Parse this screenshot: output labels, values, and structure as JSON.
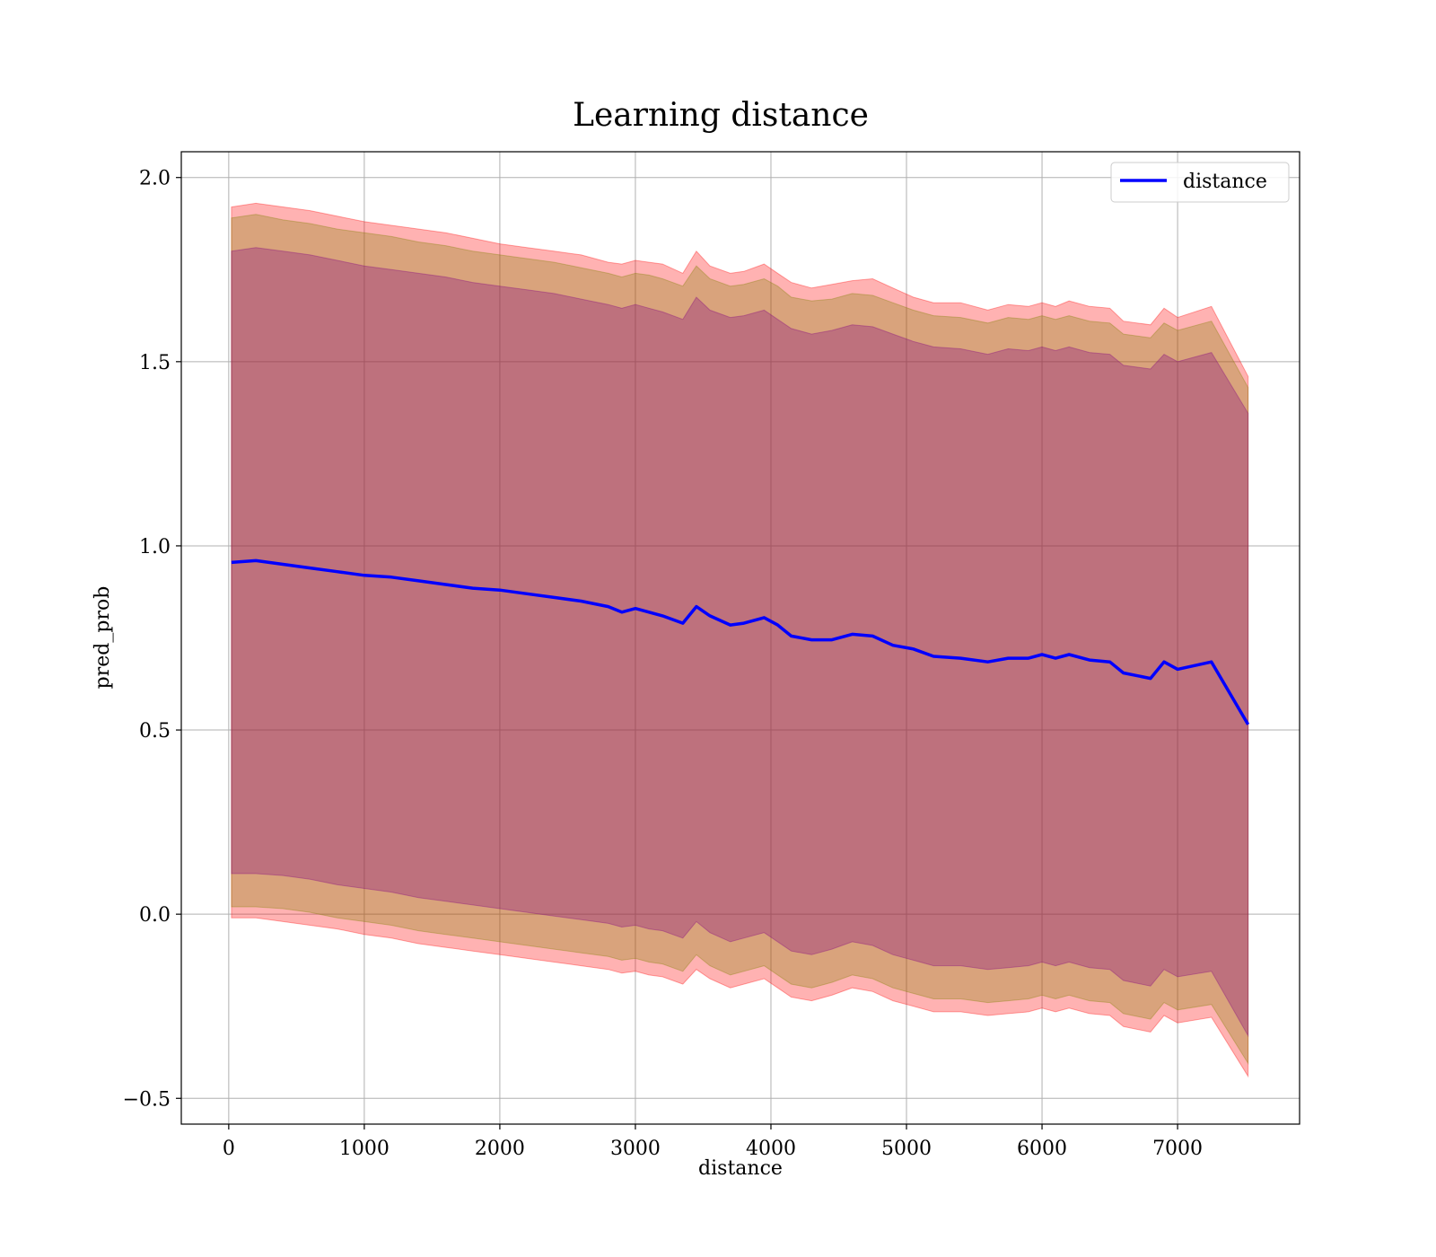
{
  "chart_data": {
    "type": "area",
    "title": "Learning distance",
    "xlabel": "distance",
    "ylabel": "pred_prob",
    "xlim": [
      -350,
      7900
    ],
    "ylim": [
      -0.57,
      2.07
    ],
    "xticks": [
      0,
      1000,
      2000,
      3000,
      4000,
      5000,
      6000,
      7000
    ],
    "yticks": [
      -0.5,
      0.0,
      0.5,
      1.0,
      1.5,
      2.0
    ],
    "xtick_labels": [
      "0",
      "1000",
      "2000",
      "3000",
      "4000",
      "5000",
      "6000",
      "7000"
    ],
    "ytick_labels": [
      "−0.5",
      "0.0",
      "0.5",
      "1.0",
      "1.5",
      "2.0"
    ],
    "grid": true,
    "legend_position": "top-right",
    "legend": [
      "distance"
    ],
    "colors": {
      "line": "#0000ff",
      "band_outer": "#ff0000",
      "band_middle": "#808000",
      "band_inner": "#800080",
      "grid": "#b0b0b0",
      "frame": "#000000"
    },
    "x": [
      20,
      200,
      400,
      600,
      800,
      1000,
      1200,
      1400,
      1600,
      1800,
      2000,
      2200,
      2400,
      2600,
      2800,
      2900,
      3000,
      3100,
      3200,
      3350,
      3450,
      3550,
      3700,
      3800,
      3950,
      4050,
      4150,
      4300,
      4450,
      4600,
      4750,
      4900,
      5050,
      5200,
      5400,
      5600,
      5750,
      5900,
      6000,
      6100,
      6200,
      6350,
      6500,
      6600,
      6800,
      6900,
      7000,
      7250,
      7520
    ],
    "series": [
      {
        "name": "distance",
        "values": [
          0.955,
          0.96,
          0.95,
          0.94,
          0.93,
          0.92,
          0.915,
          0.905,
          0.895,
          0.885,
          0.88,
          0.87,
          0.86,
          0.85,
          0.835,
          0.82,
          0.83,
          0.82,
          0.81,
          0.79,
          0.835,
          0.81,
          0.785,
          0.79,
          0.805,
          0.785,
          0.755,
          0.745,
          0.745,
          0.76,
          0.755,
          0.73,
          0.72,
          0.7,
          0.695,
          0.685,
          0.695,
          0.695,
          0.705,
          0.695,
          0.705,
          0.69,
          0.685,
          0.655,
          0.64,
          0.685,
          0.665,
          0.685,
          0.515
        ]
      }
    ],
    "bands": [
      {
        "upper": [
          1.92,
          1.93,
          1.92,
          1.91,
          1.895,
          1.88,
          1.87,
          1.86,
          1.85,
          1.835,
          1.82,
          1.81,
          1.8,
          1.79,
          1.77,
          1.765,
          1.775,
          1.77,
          1.765,
          1.74,
          1.8,
          1.76,
          1.74,
          1.745,
          1.765,
          1.74,
          1.715,
          1.7,
          1.71,
          1.72,
          1.725,
          1.7,
          1.675,
          1.66,
          1.66,
          1.64,
          1.655,
          1.65,
          1.66,
          1.65,
          1.665,
          1.65,
          1.645,
          1.61,
          1.6,
          1.645,
          1.62,
          1.65,
          1.46
        ],
        "lower": [
          -0.01,
          -0.01,
          -0.02,
          -0.03,
          -0.04,
          -0.055,
          -0.065,
          -0.08,
          -0.09,
          -0.1,
          -0.11,
          -0.12,
          -0.13,
          -0.14,
          -0.15,
          -0.16,
          -0.155,
          -0.165,
          -0.17,
          -0.19,
          -0.15,
          -0.175,
          -0.2,
          -0.19,
          -0.175,
          -0.2,
          -0.225,
          -0.235,
          -0.22,
          -0.2,
          -0.21,
          -0.235,
          -0.25,
          -0.265,
          -0.265,
          -0.275,
          -0.27,
          -0.265,
          -0.255,
          -0.265,
          -0.255,
          -0.27,
          -0.275,
          -0.305,
          -0.32,
          -0.275,
          -0.295,
          -0.28,
          -0.44
        ]
      },
      {
        "upper": [
          1.89,
          1.9,
          1.885,
          1.875,
          1.86,
          1.85,
          1.84,
          1.825,
          1.815,
          1.8,
          1.79,
          1.78,
          1.77,
          1.755,
          1.74,
          1.73,
          1.74,
          1.735,
          1.725,
          1.705,
          1.76,
          1.725,
          1.705,
          1.71,
          1.725,
          1.705,
          1.675,
          1.665,
          1.67,
          1.685,
          1.68,
          1.66,
          1.64,
          1.625,
          1.62,
          1.605,
          1.62,
          1.615,
          1.625,
          1.615,
          1.625,
          1.61,
          1.605,
          1.575,
          1.565,
          1.605,
          1.585,
          1.61,
          1.43
        ],
        "lower": [
          0.02,
          0.02,
          0.015,
          0.005,
          -0.01,
          -0.02,
          -0.03,
          -0.045,
          -0.055,
          -0.065,
          -0.075,
          -0.085,
          -0.095,
          -0.105,
          -0.115,
          -0.125,
          -0.12,
          -0.13,
          -0.135,
          -0.155,
          -0.11,
          -0.14,
          -0.165,
          -0.155,
          -0.14,
          -0.165,
          -0.19,
          -0.2,
          -0.185,
          -0.165,
          -0.175,
          -0.2,
          -0.215,
          -0.23,
          -0.23,
          -0.24,
          -0.235,
          -0.23,
          -0.22,
          -0.23,
          -0.22,
          -0.235,
          -0.24,
          -0.27,
          -0.285,
          -0.24,
          -0.26,
          -0.245,
          -0.405
        ]
      },
      {
        "upper": [
          1.8,
          1.81,
          1.8,
          1.79,
          1.775,
          1.76,
          1.75,
          1.74,
          1.73,
          1.715,
          1.705,
          1.695,
          1.685,
          1.67,
          1.655,
          1.645,
          1.655,
          1.645,
          1.635,
          1.615,
          1.675,
          1.64,
          1.62,
          1.625,
          1.64,
          1.615,
          1.59,
          1.575,
          1.585,
          1.6,
          1.595,
          1.575,
          1.555,
          1.54,
          1.535,
          1.52,
          1.535,
          1.53,
          1.54,
          1.53,
          1.54,
          1.525,
          1.52,
          1.49,
          1.48,
          1.52,
          1.5,
          1.525,
          1.36
        ],
        "lower": [
          0.11,
          0.11,
          0.105,
          0.095,
          0.08,
          0.07,
          0.06,
          0.045,
          0.035,
          0.025,
          0.015,
          0.005,
          -0.005,
          -0.015,
          -0.025,
          -0.035,
          -0.03,
          -0.04,
          -0.045,
          -0.065,
          -0.02,
          -0.05,
          -0.075,
          -0.065,
          -0.05,
          -0.075,
          -0.1,
          -0.11,
          -0.095,
          -0.075,
          -0.085,
          -0.11,
          -0.125,
          -0.14,
          -0.14,
          -0.15,
          -0.145,
          -0.14,
          -0.13,
          -0.14,
          -0.13,
          -0.145,
          -0.15,
          -0.18,
          -0.195,
          -0.15,
          -0.17,
          -0.155,
          -0.33
        ]
      }
    ]
  }
}
